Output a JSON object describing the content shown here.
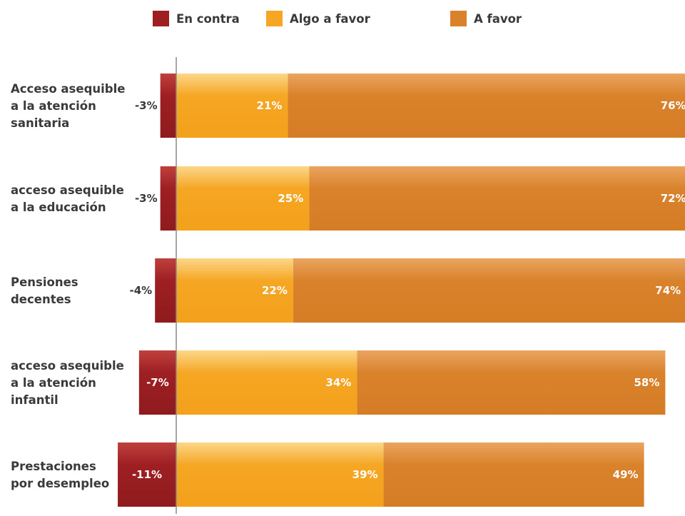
{
  "chart_data": {
    "type": "bar",
    "orientation": "horizontal",
    "stacked": true,
    "diverging": true,
    "title": "",
    "xlabel": "",
    "ylabel": "",
    "legend_position": "top",
    "grid": false,
    "categories": [
      [
        "Acceso asequible",
        "a la atención",
        "sanitaria"
      ],
      [
        "acceso asequible",
        "a la educación"
      ],
      [
        "Pensiones",
        "decentes"
      ],
      [
        "acceso asequible",
        "a la atención",
        "infantil"
      ],
      [
        "Prestaciones",
        "por desempleo"
      ]
    ],
    "series": [
      {
        "name": "En contra",
        "color": "#9e1f22",
        "values": [
          -3,
          -3,
          -4,
          -7,
          -11
        ],
        "labels": [
          "-3%",
          "-3%",
          "-4%",
          "-7%",
          "-11%"
        ]
      },
      {
        "name": "Algo a favor",
        "color": "#f5a623",
        "values": [
          21,
          25,
          22,
          34,
          39
        ],
        "labels": [
          "21%",
          "25%",
          "22%",
          "34%",
          "39%"
        ]
      },
      {
        "name": "A favor",
        "color": "#d9822b",
        "values": [
          76,
          72,
          74,
          58,
          49
        ],
        "labels": [
          "76%",
          "72%",
          "74%",
          "58%",
          "49%"
        ]
      }
    ]
  }
}
